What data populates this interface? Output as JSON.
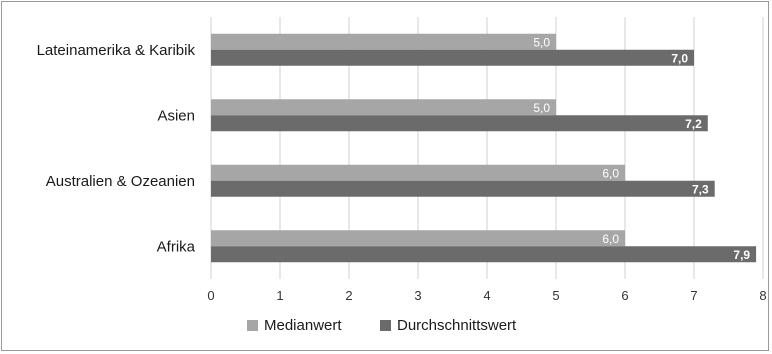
{
  "chart_data": {
    "type": "bar",
    "orientation": "horizontal",
    "categories": [
      "Lateinamerika & Karibik",
      "Asien",
      "Australien & Ozeanien",
      "Afrika"
    ],
    "series": [
      {
        "name": "Medianwert",
        "values": [
          5.0,
          5.0,
          6.0,
          6.0
        ],
        "labels": [
          "5,0",
          "5,0",
          "6,0",
          "6,0"
        ],
        "color": "#a6a6a6"
      },
      {
        "name": "Durchschnittswert",
        "values": [
          7.0,
          7.2,
          7.3,
          7.9
        ],
        "labels": [
          "7,0",
          "7,2",
          "7,3",
          "7,9"
        ],
        "color": "#6b6b6b"
      }
    ],
    "x_ticks": [
      "0",
      "1",
      "2",
      "3",
      "4",
      "5",
      "6",
      "7",
      "8"
    ],
    "xlim": [
      0,
      8
    ],
    "grid": "vertical",
    "legend": "bottom"
  }
}
